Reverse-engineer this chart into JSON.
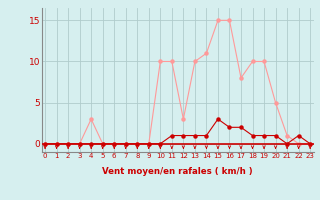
{
  "x": [
    0,
    1,
    2,
    3,
    4,
    5,
    6,
    7,
    8,
    9,
    10,
    11,
    12,
    13,
    14,
    15,
    16,
    17,
    18,
    19,
    20,
    21,
    22,
    23
  ],
  "wind_avg": [
    0,
    0,
    0,
    0,
    0,
    0,
    0,
    0,
    0,
    0,
    0,
    1,
    1,
    1,
    1,
    3,
    2,
    2,
    1,
    1,
    1,
    0,
    1,
    0
  ],
  "wind_gust": [
    0,
    0,
    0,
    0,
    3,
    0,
    0,
    0,
    0,
    0,
    10,
    10,
    3,
    10,
    11,
    15,
    15,
    8,
    10,
    10,
    5,
    1,
    0,
    0
  ],
  "bg_color": "#d6efef",
  "line_avg_color": "#cc0000",
  "line_gust_color": "#ff9999",
  "grid_color": "#b0cccc",
  "xlabel": "Vent moyen/en rafales ( km/h )",
  "xlabel_color": "#cc0000",
  "tick_label_color": "#cc0000",
  "yticks": [
    0,
    5,
    10,
    15
  ],
  "ylim": [
    -1.0,
    16.5
  ],
  "xlim": [
    -0.3,
    23.3
  ],
  "arrow_color": "#cc0000",
  "axis_line_color": "#cc0000",
  "baseline_color": "#cc0000"
}
